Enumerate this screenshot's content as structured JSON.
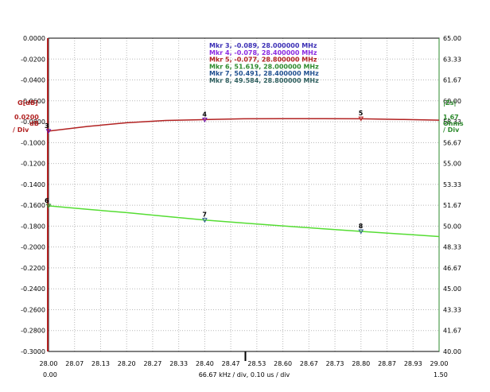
{
  "chart_data": {
    "type": "line",
    "x": [
      28.0,
      28.1,
      28.2,
      28.3,
      28.4,
      28.5,
      28.6,
      28.7,
      28.8,
      28.9,
      29.0
    ],
    "xlim": [
      28.0,
      29.0
    ],
    "x_ticks": [
      "28.00",
      "28.07",
      "28.13",
      "28.20",
      "28.27",
      "28.33",
      "28.40",
      "28.47",
      "28.53",
      "28.60",
      "28.67",
      "28.73",
      "28.80",
      "28.87",
      "28.93",
      "29.00"
    ],
    "x_time_start": "0.00",
    "x_time_end": "1.50",
    "x_div_label": "66.67 kHz / div, 0.10 us / div",
    "left_axis": {
      "title": "G[dB]",
      "scale": "0.0200",
      "scale_unit": "dB",
      "div": "/ Div",
      "ylim": [
        -0.3,
        0.0
      ],
      "ticks": [
        "0.0000",
        "-0.0200",
        "-0.0400",
        "-0.0600",
        "-0.0800",
        "-0.1000",
        "-0.1200",
        "-0.1400",
        "-0.1600",
        "-0.1800",
        "-0.2000",
        "-0.2200",
        "-0.2400",
        "-0.2600",
        "-0.2800",
        "-0.3000"
      ],
      "color": "#b22222"
    },
    "right_axis": {
      "title": "|Zs|",
      "scale": "1.67",
      "scale_unit": "Ohms",
      "div": "/ Div",
      "ylim": [
        40.0,
        65.0
      ],
      "ticks": [
        "65.00",
        "63.33",
        "61.67",
        "60.00",
        "58.33",
        "56.67",
        "55.00",
        "53.33",
        "51.67",
        "50.00",
        "48.33",
        "46.67",
        "45.00",
        "43.33",
        "41.67",
        "40.00"
      ],
      "color": "#2e8b2e"
    },
    "series": [
      {
        "axis": "left",
        "color": "#b22222",
        "values": [
          -0.089,
          -0.0845,
          -0.081,
          -0.0788,
          -0.078,
          -0.0772,
          -0.0771,
          -0.0771,
          -0.0772,
          -0.0778,
          -0.0785
        ]
      },
      {
        "axis": "right",
        "color": "#55dd33",
        "values": [
          51.619,
          51.34,
          51.08,
          50.78,
          50.491,
          50.25,
          50.02,
          49.8,
          49.584,
          49.38,
          49.17
        ]
      }
    ],
    "markers": [
      {
        "id": "3",
        "axis": "left",
        "x": 28.0,
        "y": -0.089,
        "color": "#6a0dad"
      },
      {
        "id": "4",
        "axis": "left",
        "x": 28.4,
        "y": -0.078,
        "color": "#6a0dad"
      },
      {
        "id": "5",
        "axis": "left",
        "x": 28.8,
        "y": -0.077,
        "color": "#b22222"
      },
      {
        "id": "6",
        "axis": "right",
        "x": 28.0,
        "y": 51.619,
        "color": "#2e8b2e"
      },
      {
        "id": "7",
        "axis": "right",
        "x": 28.4,
        "y": 50.491,
        "color": "#2f5f8f"
      },
      {
        "id": "8",
        "axis": "right",
        "x": 28.8,
        "y": 49.584,
        "color": "#2f5f8f"
      }
    ],
    "legend": [
      {
        "text": "Mkr 3, -0.089, 28.000000 MHz",
        "color": "#3b2fb5"
      },
      {
        "text": "Mkr 4, -0.078, 28.400000 MHz",
        "color": "#8a2be2"
      },
      {
        "text": "Mkr 5, -0.077, 28.800000 MHz",
        "color": "#b22222"
      },
      {
        "text": "Mkr 6, 51.619, 28.000000 MHz",
        "color": "#2e8b2e"
      },
      {
        "text": "Mkr 7, 50.491, 28.400000 MHz",
        "color": "#1f4f8f"
      },
      {
        "text": "Mkr 8, 49.584, 28.800000 MHz",
        "color": "#2f5f5f"
      }
    ],
    "legend_placement": "top-center",
    "grid": true,
    "cursor_color": "#000000"
  }
}
